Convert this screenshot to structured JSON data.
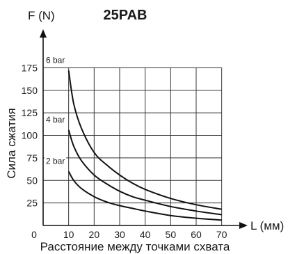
{
  "chart_data": {
    "type": "line",
    "title": "25PAB",
    "ylabel_unit": "F (N)",
    "ylabel": "Сила сжатия",
    "xlabel_unit": "L (мм)",
    "xlabel": "Расстояние между точками схвата",
    "origin_label": "0",
    "x_ticks": [
      10,
      20,
      30,
      40,
      50,
      60,
      70
    ],
    "y_ticks": [
      25,
      50,
      75,
      100,
      125,
      150,
      175
    ],
    "xlim": [
      0,
      75
    ],
    "ylim": [
      0,
      190
    ],
    "grid": true,
    "series": [
      {
        "name": "6 bar",
        "x": [
          10,
          12,
          15,
          20,
          25,
          30,
          35,
          40,
          50,
          60,
          70
        ],
        "values": [
          172,
          135,
          108,
          81,
          67,
          56,
          47,
          40,
          30,
          23,
          18
        ]
      },
      {
        "name": "4 bar",
        "x": [
          10,
          12,
          15,
          20,
          25,
          30,
          35,
          40,
          50,
          60,
          70
        ],
        "values": [
          106,
          88,
          72,
          56,
          46,
          38,
          32,
          28,
          21,
          16,
          12
        ]
      },
      {
        "name": "2 bar",
        "x": [
          10,
          12,
          15,
          20,
          25,
          30,
          35,
          40,
          50,
          60,
          70
        ],
        "values": [
          60,
          50,
          41,
          32,
          26,
          22,
          19,
          16,
          11,
          8,
          6
        ]
      }
    ]
  }
}
